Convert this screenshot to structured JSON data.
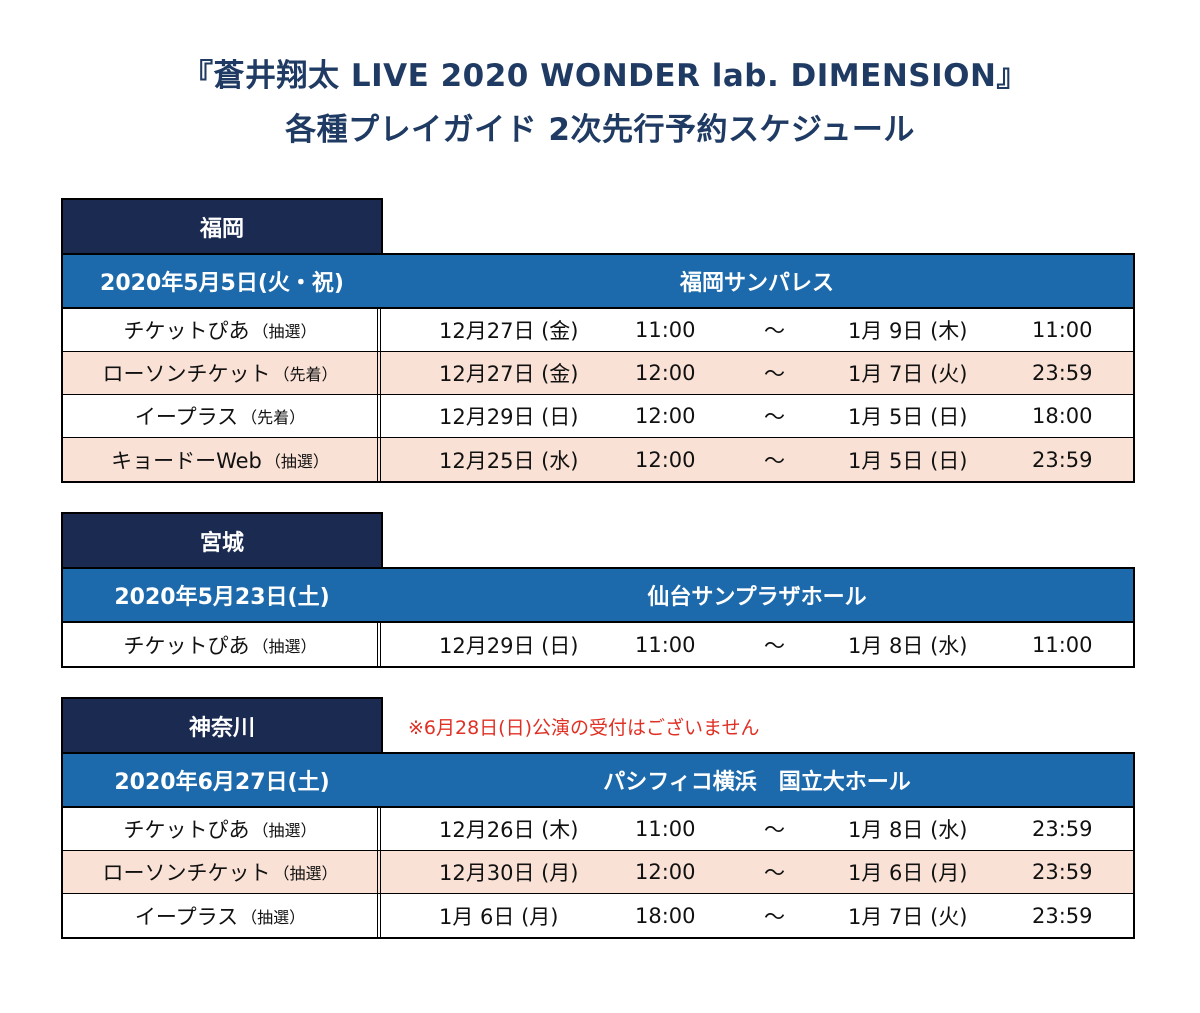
{
  "title": {
    "line1": "『蒼井翔太 LIVE 2020 WONDER lab. DIMENSION』",
    "line2": "各種プレイガイド 2次先行予約スケジュール"
  },
  "regions": [
    {
      "name": "福岡",
      "date": "2020年5月5日(火・祝)",
      "venue": "福岡サンパレス",
      "note": "",
      "rows": [
        {
          "guide": "チケットぴあ",
          "method": "（抽選）",
          "start_date": "12月27日 (金)",
          "start_time": "11:00",
          "tilde": "～",
          "end_date": "1月  9日 (木)",
          "end_time": "11:00"
        },
        {
          "guide": "ローソンチケット",
          "method": "（先着）",
          "start_date": "12月27日 (金)",
          "start_time": "12:00",
          "tilde": "～",
          "end_date": "1月  7日 (火)",
          "end_time": "23:59"
        },
        {
          "guide": "イープラス",
          "method": "（先着）",
          "start_date": "12月29日 (日)",
          "start_time": "12:00",
          "tilde": "～",
          "end_date": "1月  5日 (日)",
          "end_time": "18:00"
        },
        {
          "guide": "キョードーWeb",
          "method": "（抽選）",
          "start_date": "12月25日 (水)",
          "start_time": "12:00",
          "tilde": "～",
          "end_date": "1月  5日 (日)",
          "end_time": "23:59"
        }
      ]
    },
    {
      "name": "宮城",
      "date": "2020年5月23日(土)",
      "venue": "仙台サンプラザホール",
      "note": "",
      "rows": [
        {
          "guide": "チケットぴあ",
          "method": "（抽選）",
          "start_date": "12月29日 (日)",
          "start_time": "11:00",
          "tilde": "～",
          "end_date": "1月  8日 (水)",
          "end_time": "11:00"
        }
      ]
    },
    {
      "name": "神奈川",
      "date": "2020年6月27日(土)",
      "venue": "パシフィコ横浜　国立大ホール",
      "note": "※6月28日(日)公演の受付はございません",
      "rows": [
        {
          "guide": "チケットぴあ",
          "method": "（抽選）",
          "start_date": "12月26日 (木)",
          "start_time": "11:00",
          "tilde": "～",
          "end_date": "1月  8日 (水)",
          "end_time": "23:59"
        },
        {
          "guide": "ローソンチケット",
          "method": "（抽選）",
          "start_date": "12月30日 (月)",
          "start_time": "12:00",
          "tilde": "～",
          "end_date": "1月  6日 (月)",
          "end_time": "23:59"
        },
        {
          "guide": "イープラス",
          "method": "（抽選）",
          "start_date": "1月  6日 (月)",
          "start_time": "18:00",
          "tilde": "～",
          "end_date": "1月  7日 (火)",
          "end_time": "23:59"
        }
      ]
    }
  ],
  "colors": {
    "title": "#1f3b63",
    "region_tab": "#1b2a50",
    "header": "#1c6aab",
    "alt_row": "#f9e1d5",
    "note": "#e03024"
  }
}
